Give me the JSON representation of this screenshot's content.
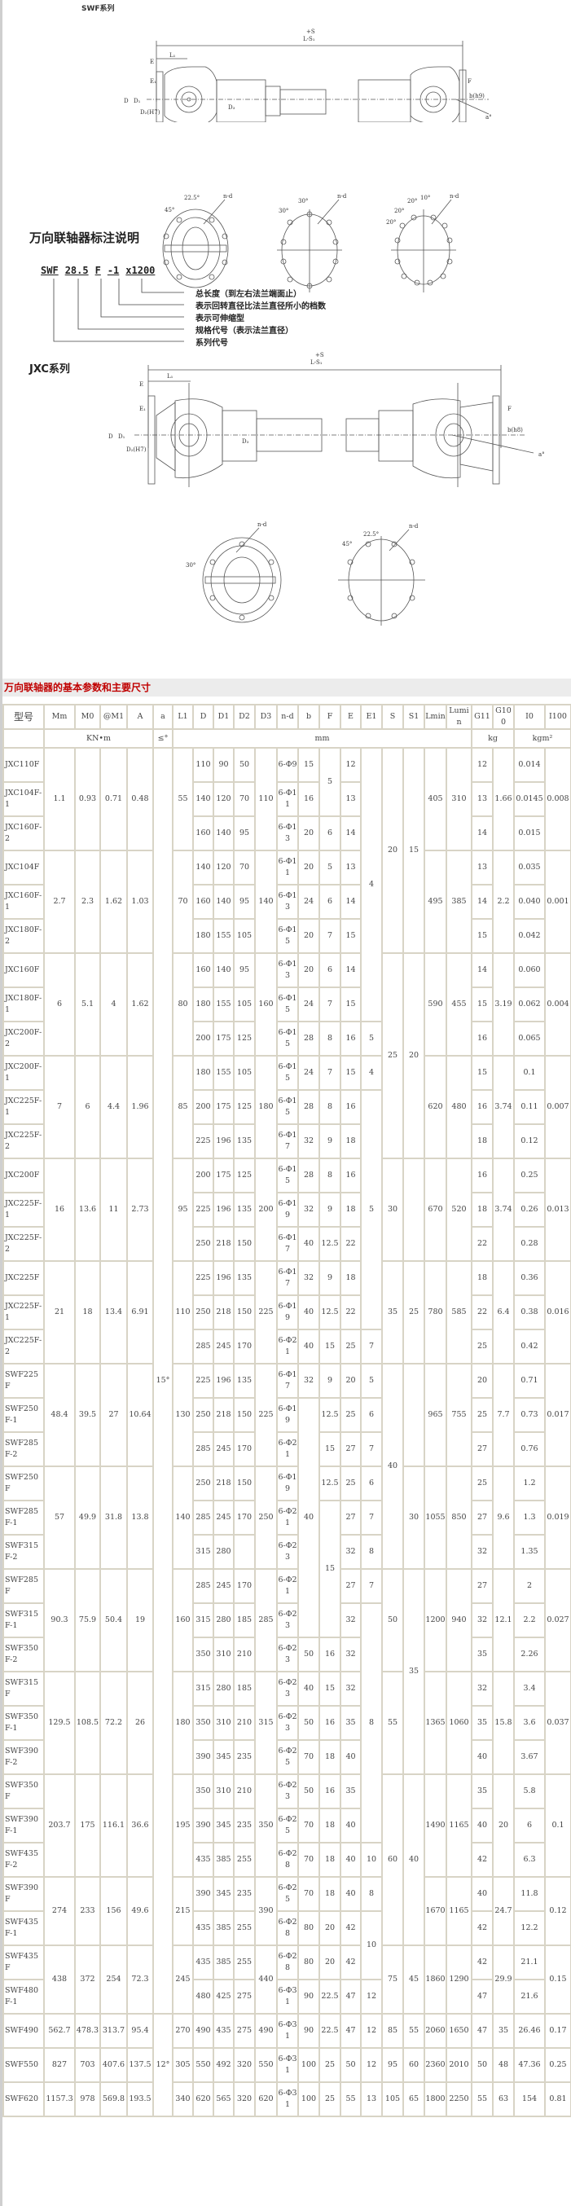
{
  "swf_section": {
    "title": "SWF系列",
    "drawing_labels": {
      "total": "+S",
      "total2": "L-S₁",
      "l1": "L₁",
      "e": "E",
      "e1": "E₁",
      "d": "D",
      "d1": "D₁",
      "d2": "D₂(H7)",
      "d3": "D₃",
      "f": "F",
      "b": "b(h9)",
      "a": "a°",
      "nd": "n-d",
      "ang1": "22.5°",
      "ang2": "45°",
      "ang3": "30°",
      "ang4": "30°",
      "ang5": "20°",
      "ang6": "10°",
      "ang7": "20°",
      "ang8": "20°"
    }
  },
  "notation": {
    "title": "万向联轴器标注说明",
    "code_parts": [
      "SWF",
      "28.5",
      "F",
      "-1",
      "x1200"
    ],
    "explanations": [
      "总长度（到左右法兰端面止）",
      "表示回转直径比法兰直径所小的档数",
      "表示可伸缩型",
      "规格代号（表示法兰直径）",
      "系列代号"
    ]
  },
  "jxc_section": {
    "title": "JXC系列",
    "drawing_labels": {
      "total": "+S",
      "total2": "L-S₁",
      "l1": "L₁",
      "e": "E",
      "e1": "E₁",
      "d": "D",
      "d1": "D₁",
      "d2": "D₂(H7)",
      "d3": "D₃",
      "f": "F",
      "b": "b(h8)",
      "a": "a°",
      "nd": "n-d",
      "ang1": "30°",
      "ang2": "22.5°",
      "ang3": "45°"
    }
  },
  "table": {
    "title": "万向联轴器的基本参数和主要尺寸",
    "headers": [
      "型号",
      "Mm",
      "M0",
      "@M1",
      "A",
      "a",
      "L1",
      "D",
      "D1",
      "D2",
      "D3",
      "n-d",
      "b",
      "F",
      "E",
      "E1",
      "S",
      "S1",
      "Lmin",
      "Lumin",
      "G11",
      "G100",
      "I0",
      "I100"
    ],
    "units": [
      {
        "label": "",
        "span": 1
      },
      {
        "label": "KN•m",
        "span": 4
      },
      {
        "label": "≤°",
        "span": 1
      },
      {
        "label": "mm",
        "span": 14
      },
      {
        "label": "kg",
        "span": 2
      },
      {
        "label": "kgm²",
        "span": 2
      }
    ],
    "rows": [
      [
        "JXC110F",
        "1.1",
        "0.93",
        "0.71",
        "0.48",
        "15°",
        "55",
        "110",
        "90",
        "50",
        "110",
        "6-Φ9",
        "15",
        "5",
        "12",
        "4",
        "20",
        "15",
        "405",
        "310",
        "12",
        "1.66",
        "0.014",
        "0.008"
      ],
      [
        "JXC104F-1",
        null,
        null,
        null,
        null,
        null,
        null,
        "140",
        "120",
        "70",
        null,
        "6-Φ11",
        "16",
        null,
        "13",
        null,
        null,
        null,
        null,
        null,
        "13",
        null,
        "0.0145",
        null
      ],
      [
        "JXC160F-2",
        null,
        null,
        null,
        null,
        null,
        null,
        "160",
        "140",
        "95",
        null,
        "6-Φ13",
        "20",
        "6",
        "14",
        null,
        null,
        null,
        null,
        null,
        "14",
        null,
        "0.015",
        null
      ],
      [
        "JXC104F",
        "2.7",
        "2.3",
        "1.62",
        "1.03",
        null,
        "70",
        "140",
        "120",
        "70",
        "140",
        "6-Φ11",
        "20",
        "5",
        "13",
        null,
        null,
        null,
        "495",
        "385",
        "13",
        "2.2",
        "0.035",
        "0.001"
      ],
      [
        "JXC160F-1",
        null,
        null,
        null,
        null,
        null,
        null,
        "160",
        "140",
        "95",
        null,
        "6-Φ13",
        "24",
        "6",
        "14",
        null,
        null,
        null,
        null,
        null,
        "14",
        null,
        "0.040",
        null
      ],
      [
        "JXC180F-2",
        null,
        null,
        null,
        null,
        null,
        null,
        "180",
        "155",
        "105",
        null,
        "6-Φ15",
        "20",
        "7",
        "15",
        null,
        null,
        null,
        null,
        null,
        "15",
        null,
        "0.042",
        null
      ],
      [
        "JXC160F",
        "6",
        "5.1",
        "4",
        "1.62",
        null,
        "80",
        "160",
        "140",
        "95",
        "160",
        "6-Φ13",
        "20",
        "6",
        "14",
        null,
        "25",
        "20",
        "590",
        "455",
        "14",
        "3.19",
        "0.060",
        "0.004"
      ],
      [
        "JXC180F-1",
        null,
        null,
        null,
        null,
        null,
        null,
        "180",
        "155",
        "105",
        null,
        "6-Φ15",
        "24",
        "7",
        "15",
        null,
        null,
        null,
        null,
        null,
        "15",
        null,
        "0.062",
        null
      ],
      [
        "JXC200F-2",
        null,
        null,
        null,
        null,
        null,
        null,
        "200",
        "175",
        "125",
        null,
        "6-Φ15",
        "28",
        "8",
        "16",
        "5",
        null,
        null,
        null,
        null,
        "16",
        null,
        "0.065",
        null
      ],
      [
        "JXC200F-1",
        "7",
        "6",
        "4.4",
        "1.96",
        null,
        "85",
        "180",
        "155",
        "105",
        "180",
        "6-Φ15",
        "24",
        "7",
        "15",
        "4",
        null,
        null,
        "620",
        "480",
        "15",
        "3.74",
        "0.1",
        "0.007"
      ],
      [
        "JXC225F-1",
        null,
        null,
        null,
        null,
        null,
        null,
        "200",
        "175",
        "125",
        null,
        "6-Φ15",
        "28",
        "8",
        "16",
        "5",
        null,
        null,
        null,
        null,
        "16",
        null,
        "0.11",
        null
      ],
      [
        "JXC225F-2",
        null,
        null,
        null,
        null,
        null,
        null,
        "225",
        "196",
        "135",
        null,
        "6-Φ17",
        "32",
        "9",
        "18",
        null,
        null,
        null,
        null,
        null,
        "18",
        null,
        "0.12",
        null
      ],
      [
        "JXC200F",
        "16",
        "13.6",
        "11",
        "2.73",
        null,
        "95",
        "200",
        "175",
        "125",
        "200",
        "6-Φ15",
        "28",
        "8",
        "16",
        null,
        "30",
        "",
        "670",
        "520",
        "16",
        "3.74",
        "0.25",
        "0.013"
      ],
      [
        "JXC225F-1",
        null,
        null,
        null,
        null,
        null,
        null,
        "225",
        "196",
        "135",
        null,
        "6-Φ19",
        "32",
        "9",
        "18",
        null,
        null,
        null,
        null,
        null,
        "18",
        null,
        "0.26",
        null
      ],
      [
        "JXC225F-2",
        null,
        null,
        null,
        null,
        null,
        null,
        "250",
        "218",
        "150",
        null,
        "6-Φ17",
        "40",
        "12.5",
        "22",
        null,
        null,
        null,
        null,
        null,
        "22",
        null,
        "0.28",
        null
      ],
      [
        "JXC225F",
        "21",
        "18",
        "13.4",
        "6.91",
        null,
        "110",
        "225",
        "196",
        "135",
        "225",
        "6-Φ17",
        "32",
        "9",
        "18",
        null,
        "35",
        "25",
        "780",
        "585",
        "18",
        "6.4",
        "0.36",
        "0.016"
      ],
      [
        "JXC225F-1",
        null,
        null,
        null,
        null,
        null,
        null,
        "250",
        "218",
        "150",
        null,
        "6-Φ19",
        "40",
        "12.5",
        "22",
        null,
        null,
        null,
        null,
        null,
        "22",
        null,
        "0.38",
        null
      ],
      [
        "JXC225F-2",
        null,
        null,
        null,
        null,
        null,
        null,
        "285",
        "245",
        "170",
        null,
        "6-Φ21",
        "40",
        "15",
        "25",
        "7",
        null,
        null,
        null,
        null,
        "25",
        null,
        "0.42",
        null
      ],
      [
        "SWF225F",
        "48.4",
        "39.5",
        "27",
        "10.64",
        null,
        "130",
        "225",
        "196",
        "135",
        "225",
        "6-Φ17",
        "32",
        "9",
        "20",
        "5",
        "40",
        "",
        "965",
        "755",
        "20",
        "7.7",
        "0.71",
        "0.017"
      ],
      [
        "SWF250F-1",
        null,
        null,
        null,
        null,
        null,
        null,
        "250",
        "218",
        "150",
        null,
        "6-Φ19",
        "40",
        "12.5",
        "25",
        "6",
        null,
        null,
        null,
        null,
        "25",
        null,
        "0.73",
        null
      ],
      [
        "SWF285F-2",
        null,
        null,
        null,
        null,
        null,
        null,
        "285",
        "245",
        "170",
        null,
        "6-Φ21",
        null,
        "15",
        "27",
        "7",
        null,
        null,
        null,
        null,
        "27",
        null,
        "0.76",
        null
      ],
      [
        "SWF250F",
        "57",
        "49.9",
        "31.8",
        "13.8",
        null,
        "140",
        "250",
        "218",
        "150",
        "250",
        "6-Φ19",
        null,
        "12.5",
        "25",
        "6",
        null,
        "30",
        "1055",
        "850",
        "25",
        "9.6",
        "1.2",
        "0.019"
      ],
      [
        "SWF285F-1",
        null,
        null,
        null,
        null,
        null,
        null,
        "285",
        "245",
        "170",
        null,
        "6-Φ21",
        null,
        "15",
        "27",
        "7",
        null,
        null,
        null,
        null,
        "27",
        null,
        "1.3",
        null
      ],
      [
        "SWF315F-2",
        null,
        null,
        null,
        null,
        null,
        null,
        "315",
        "280",
        "",
        null,
        "6-Φ23",
        null,
        null,
        "32",
        "8",
        null,
        null,
        null,
        null,
        "32",
        null,
        "1.35",
        null
      ],
      [
        "SWF285F",
        "90.3",
        "75.9",
        "50.4",
        "19",
        null,
        "160",
        "285",
        "245",
        "170",
        "285",
        "6-Φ21",
        null,
        null,
        "27",
        "7",
        "50",
        "35",
        "1200",
        "940",
        "27",
        "12.1",
        "2",
        "0.027"
      ],
      [
        "SWF315F-1",
        null,
        null,
        null,
        null,
        null,
        null,
        "315",
        "280",
        "185",
        null,
        "6-Φ23",
        null,
        null,
        "32",
        "8",
        null,
        null,
        null,
        null,
        "32",
        null,
        "2.2",
        null
      ],
      [
        "SWF350F-2",
        null,
        null,
        null,
        null,
        null,
        null,
        "350",
        "310",
        "210",
        null,
        "6-Φ23",
        "50",
        "16",
        "32",
        null,
        null,
        null,
        null,
        null,
        "35",
        null,
        "2.26",
        null
      ],
      [
        "SWF315F",
        "129.5",
        "108.5",
        "72.2",
        "26",
        null,
        "180",
        "315",
        "280",
        "185",
        "315",
        "6-Φ23",
        "40",
        "15",
        "32",
        null,
        "55",
        null,
        "1365",
        "1060",
        "32",
        "15.8",
        "3.4",
        "0.037"
      ],
      [
        "SWF350F-1",
        null,
        null,
        null,
        null,
        null,
        null,
        "350",
        "310",
        "210",
        null,
        "6-Φ23",
        "50",
        "16",
        "35",
        null,
        null,
        null,
        null,
        null,
        "35",
        null,
        "3.6",
        null
      ],
      [
        "SWF390F-2",
        null,
        null,
        null,
        null,
        null,
        null,
        "390",
        "345",
        "235",
        null,
        "6-Φ25",
        "70",
        "18",
        "40",
        null,
        null,
        null,
        null,
        null,
        "40",
        null,
        "3.67",
        null
      ],
      [
        "SWF350F",
        "203.7",
        "175",
        "116.1",
        "36.6",
        null,
        "195",
        "350",
        "310",
        "210",
        "350",
        "6-Φ23",
        "50",
        "16",
        "35",
        null,
        "60",
        "40",
        "1490",
        "1165",
        "35",
        "20",
        "5.8",
        "0.1"
      ],
      [
        "SWF390F-1",
        null,
        null,
        null,
        null,
        null,
        null,
        "390",
        "345",
        "235",
        null,
        "6-Φ25",
        "70",
        "18",
        "40",
        null,
        null,
        null,
        null,
        null,
        "40",
        null,
        "6",
        null
      ],
      [
        "SWF435F-2",
        null,
        null,
        null,
        null,
        null,
        null,
        "435",
        "385",
        "255",
        null,
        "6-Φ28",
        "70",
        "18",
        "40",
        "10",
        null,
        null,
        null,
        null,
        "42",
        null,
        "6.3",
        null
      ],
      [
        "SWF390F",
        "274",
        "233",
        "156",
        "49.6",
        null,
        "215",
        "390",
        "345",
        "235",
        "390",
        "6-Φ25",
        "70",
        "18",
        "40",
        "8",
        null,
        null,
        "1670",
        "1165",
        "40",
        "24.7",
        "11.8",
        "0.12"
      ],
      [
        "SWF435F-1",
        null,
        null,
        null,
        null,
        null,
        null,
        "435",
        "385",
        "255",
        null,
        "6-Φ28",
        "80",
        "20",
        "42",
        "10",
        null,
        null,
        null,
        null,
        "42",
        null,
        "12.2",
        null
      ],
      [
        "SWF435F",
        "438",
        "372",
        "254",
        "72.3",
        null,
        "245",
        "435",
        "385",
        "255",
        "440",
        "6-Φ28",
        "80",
        "20",
        "42",
        null,
        "75",
        "45",
        "1860",
        "1290",
        "42",
        "29.9",
        "21.1",
        "0.15"
      ],
      [
        "SWF480F-1",
        null,
        null,
        null,
        null,
        null,
        null,
        "480",
        "425",
        "275",
        null,
        "6-Φ31",
        "90",
        "22.5",
        "47",
        "12",
        null,
        null,
        null,
        null,
        "47",
        null,
        "21.6",
        null
      ],
      [
        "SWF490",
        "562.7",
        "478.3",
        "313.7",
        "95.4",
        "12°",
        "270",
        "490",
        "435",
        "275",
        "490",
        "6-Φ31",
        "90",
        "22.5",
        "47",
        "12",
        "85",
        "55",
        "2060",
        "1650",
        "47",
        "35",
        "26.46",
        "0.17"
      ],
      [
        "SWF550",
        "827",
        "703",
        "407.6",
        "137.5",
        null,
        "305",
        "550",
        "492",
        "320",
        "550",
        "6-Φ31",
        "100",
        "25",
        "50",
        "12",
        "95",
        "60",
        "2360",
        "2010",
        "50",
        "48",
        "47.36",
        "0.25"
      ],
      [
        "SWF620",
        "1157.3",
        "978",
        "569.8",
        "193.5",
        null,
        "340",
        "620",
        "565",
        "320",
        "620",
        "6-Φ31",
        "100",
        "25",
        "55",
        "13",
        "105",
        "65",
        "1800",
        "2250",
        "55",
        "63",
        "154",
        "0.81"
      ]
    ]
  }
}
